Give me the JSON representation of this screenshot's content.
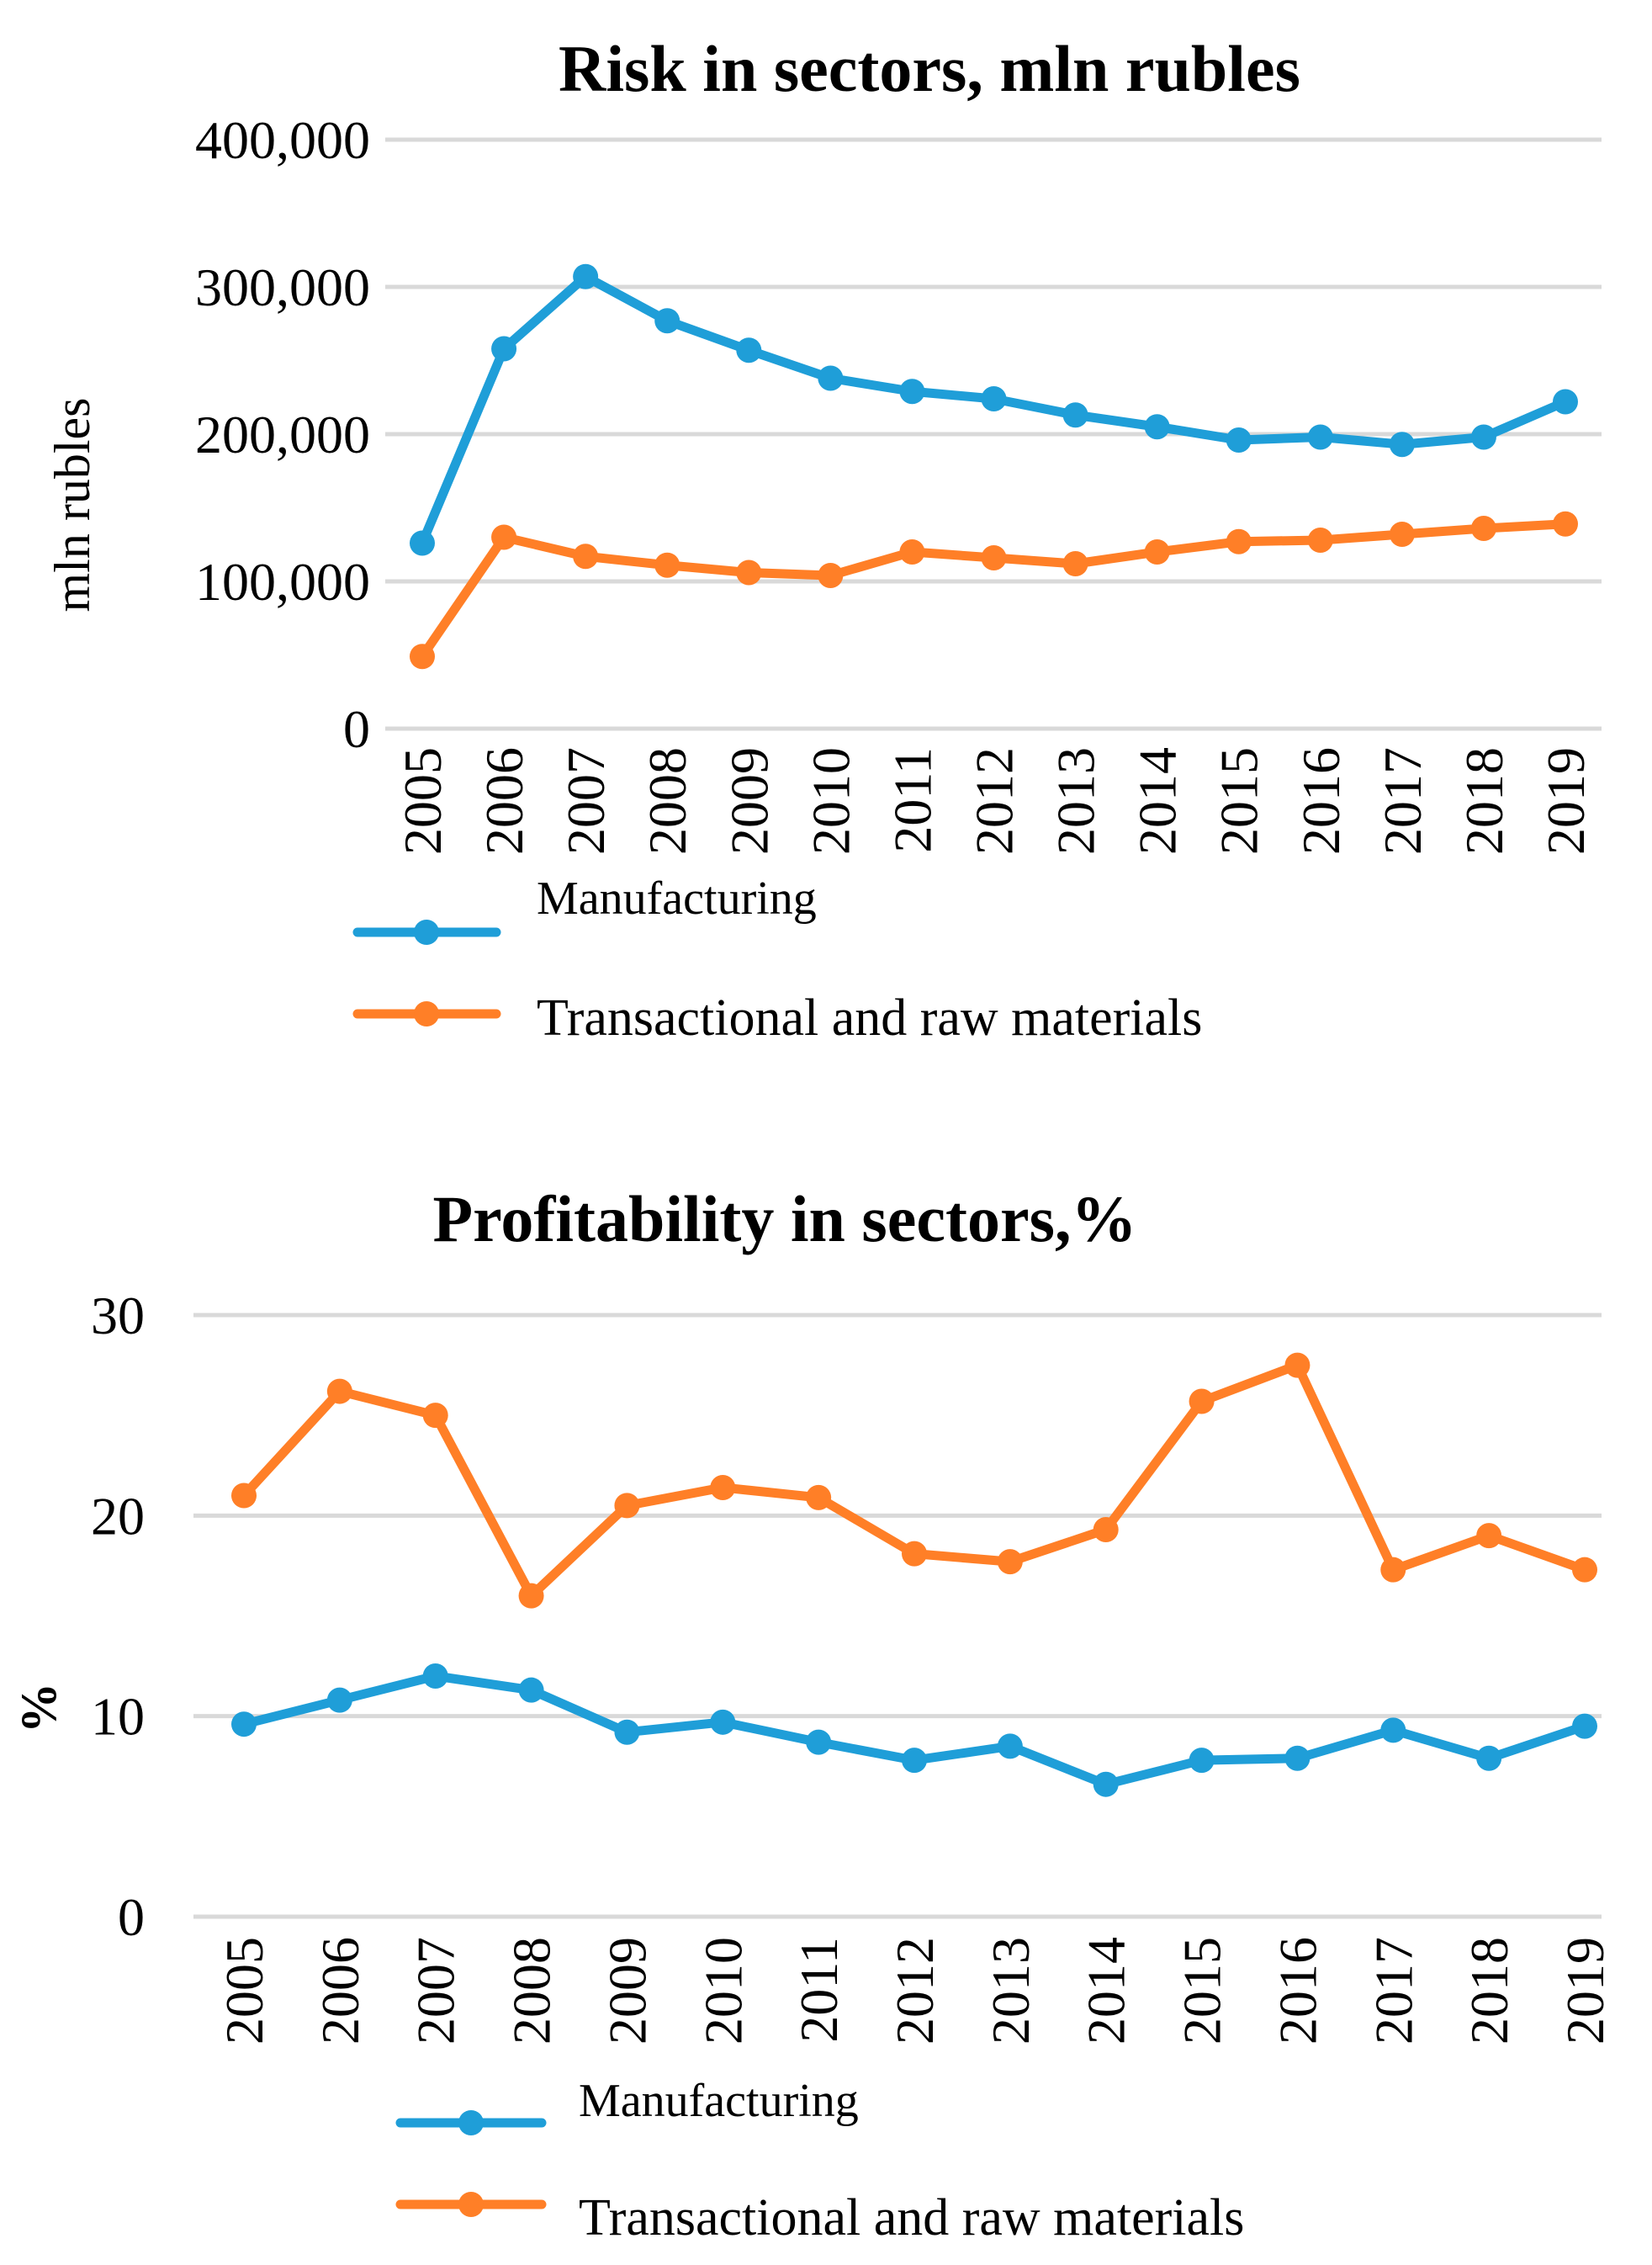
{
  "colors": {
    "manufacturing": "#1F9ED8",
    "transactional": "#FF7F27",
    "grid": "#D9D9D9",
    "background": "#FFFFFF"
  },
  "chart_data": [
    {
      "type": "line",
      "title": "Risk in sectors, mln rubles",
      "xlabel": "",
      "ylabel": "mln rubles",
      "ylim": [
        0,
        400000
      ],
      "yticks": [
        0,
        100000,
        200000,
        300000,
        400000
      ],
      "ytick_labels": [
        "0",
        "100,000",
        "200,000",
        "300,000",
        "400,000"
      ],
      "categories": [
        "2005",
        "2006",
        "2007",
        "2008",
        "2009",
        "2010",
        "2011",
        "2012",
        "2013",
        "2014",
        "2015",
        "2016",
        "2017",
        "2018",
        "2019"
      ],
      "grid": true,
      "legend": "bottom",
      "series": [
        {
          "name": "Manufacturing",
          "color_key": "manufacturing",
          "values": [
            126000,
            258000,
            307000,
            277000,
            257000,
            238000,
            229000,
            224000,
            213000,
            205000,
            196000,
            198000,
            193000,
            198000,
            222000
          ]
        },
        {
          "name": "Transactional and raw materials",
          "color_key": "transactional",
          "values": [
            49000,
            130000,
            117000,
            111000,
            106000,
            104000,
            120000,
            116000,
            112000,
            120000,
            127000,
            128000,
            132000,
            136000,
            139000
          ]
        }
      ]
    },
    {
      "type": "line",
      "title": "Profitability in sectors,%",
      "xlabel": "",
      "ylabel": "%",
      "ylim": [
        0,
        30
      ],
      "yticks": [
        0,
        10,
        20,
        30
      ],
      "ytick_labels": [
        "0",
        "10",
        "20",
        "30"
      ],
      "categories": [
        "2005",
        "2006",
        "2007",
        "2008",
        "2009",
        "2010",
        "2011",
        "2012",
        "2013",
        "2014",
        "2015",
        "2016",
        "2017",
        "2018",
        "2019"
      ],
      "grid": true,
      "legend": "bottom",
      "series": [
        {
          "name": "Manufacturing",
          "color_key": "manufacturing",
          "values": [
            9.6,
            10.8,
            12.0,
            11.3,
            9.2,
            9.7,
            8.7,
            7.8,
            8.5,
            6.6,
            7.8,
            7.9,
            9.3,
            7.9,
            9.5
          ]
        },
        {
          "name": "Transactional and raw materials",
          "color_key": "transactional",
          "values": [
            21.0,
            26.2,
            25.0,
            16.0,
            20.5,
            21.4,
            20.9,
            18.1,
            17.7,
            19.3,
            25.7,
            27.5,
            17.3,
            19.0,
            17.3
          ]
        }
      ]
    }
  ]
}
